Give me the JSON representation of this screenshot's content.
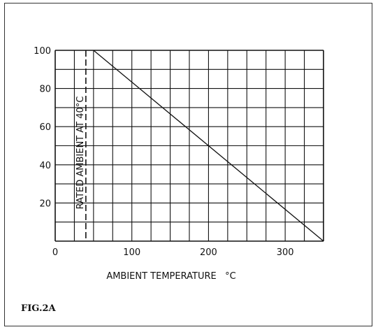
{
  "chart_data": {
    "type": "line",
    "title": "",
    "xlabel": "AMBIENT TEMPERATURE   °C",
    "ylabel": "",
    "xlim": [
      0,
      350
    ],
    "ylim": [
      0,
      100
    ],
    "x_ticks": [
      0,
      100,
      200,
      300
    ],
    "y_ticks": [
      20,
      40,
      60,
      80,
      100
    ],
    "x_grid_step": 25,
    "y_grid_step": 10,
    "grid": true,
    "series": [
      {
        "x": [
          50,
          350
        ],
        "y": [
          100,
          0
        ]
      }
    ],
    "annotations": [
      {
        "text": "RATED AMBIENT AT 40°C",
        "x": 40,
        "style": "dashed-vertical-line"
      }
    ],
    "caption": "FIG.2A"
  }
}
